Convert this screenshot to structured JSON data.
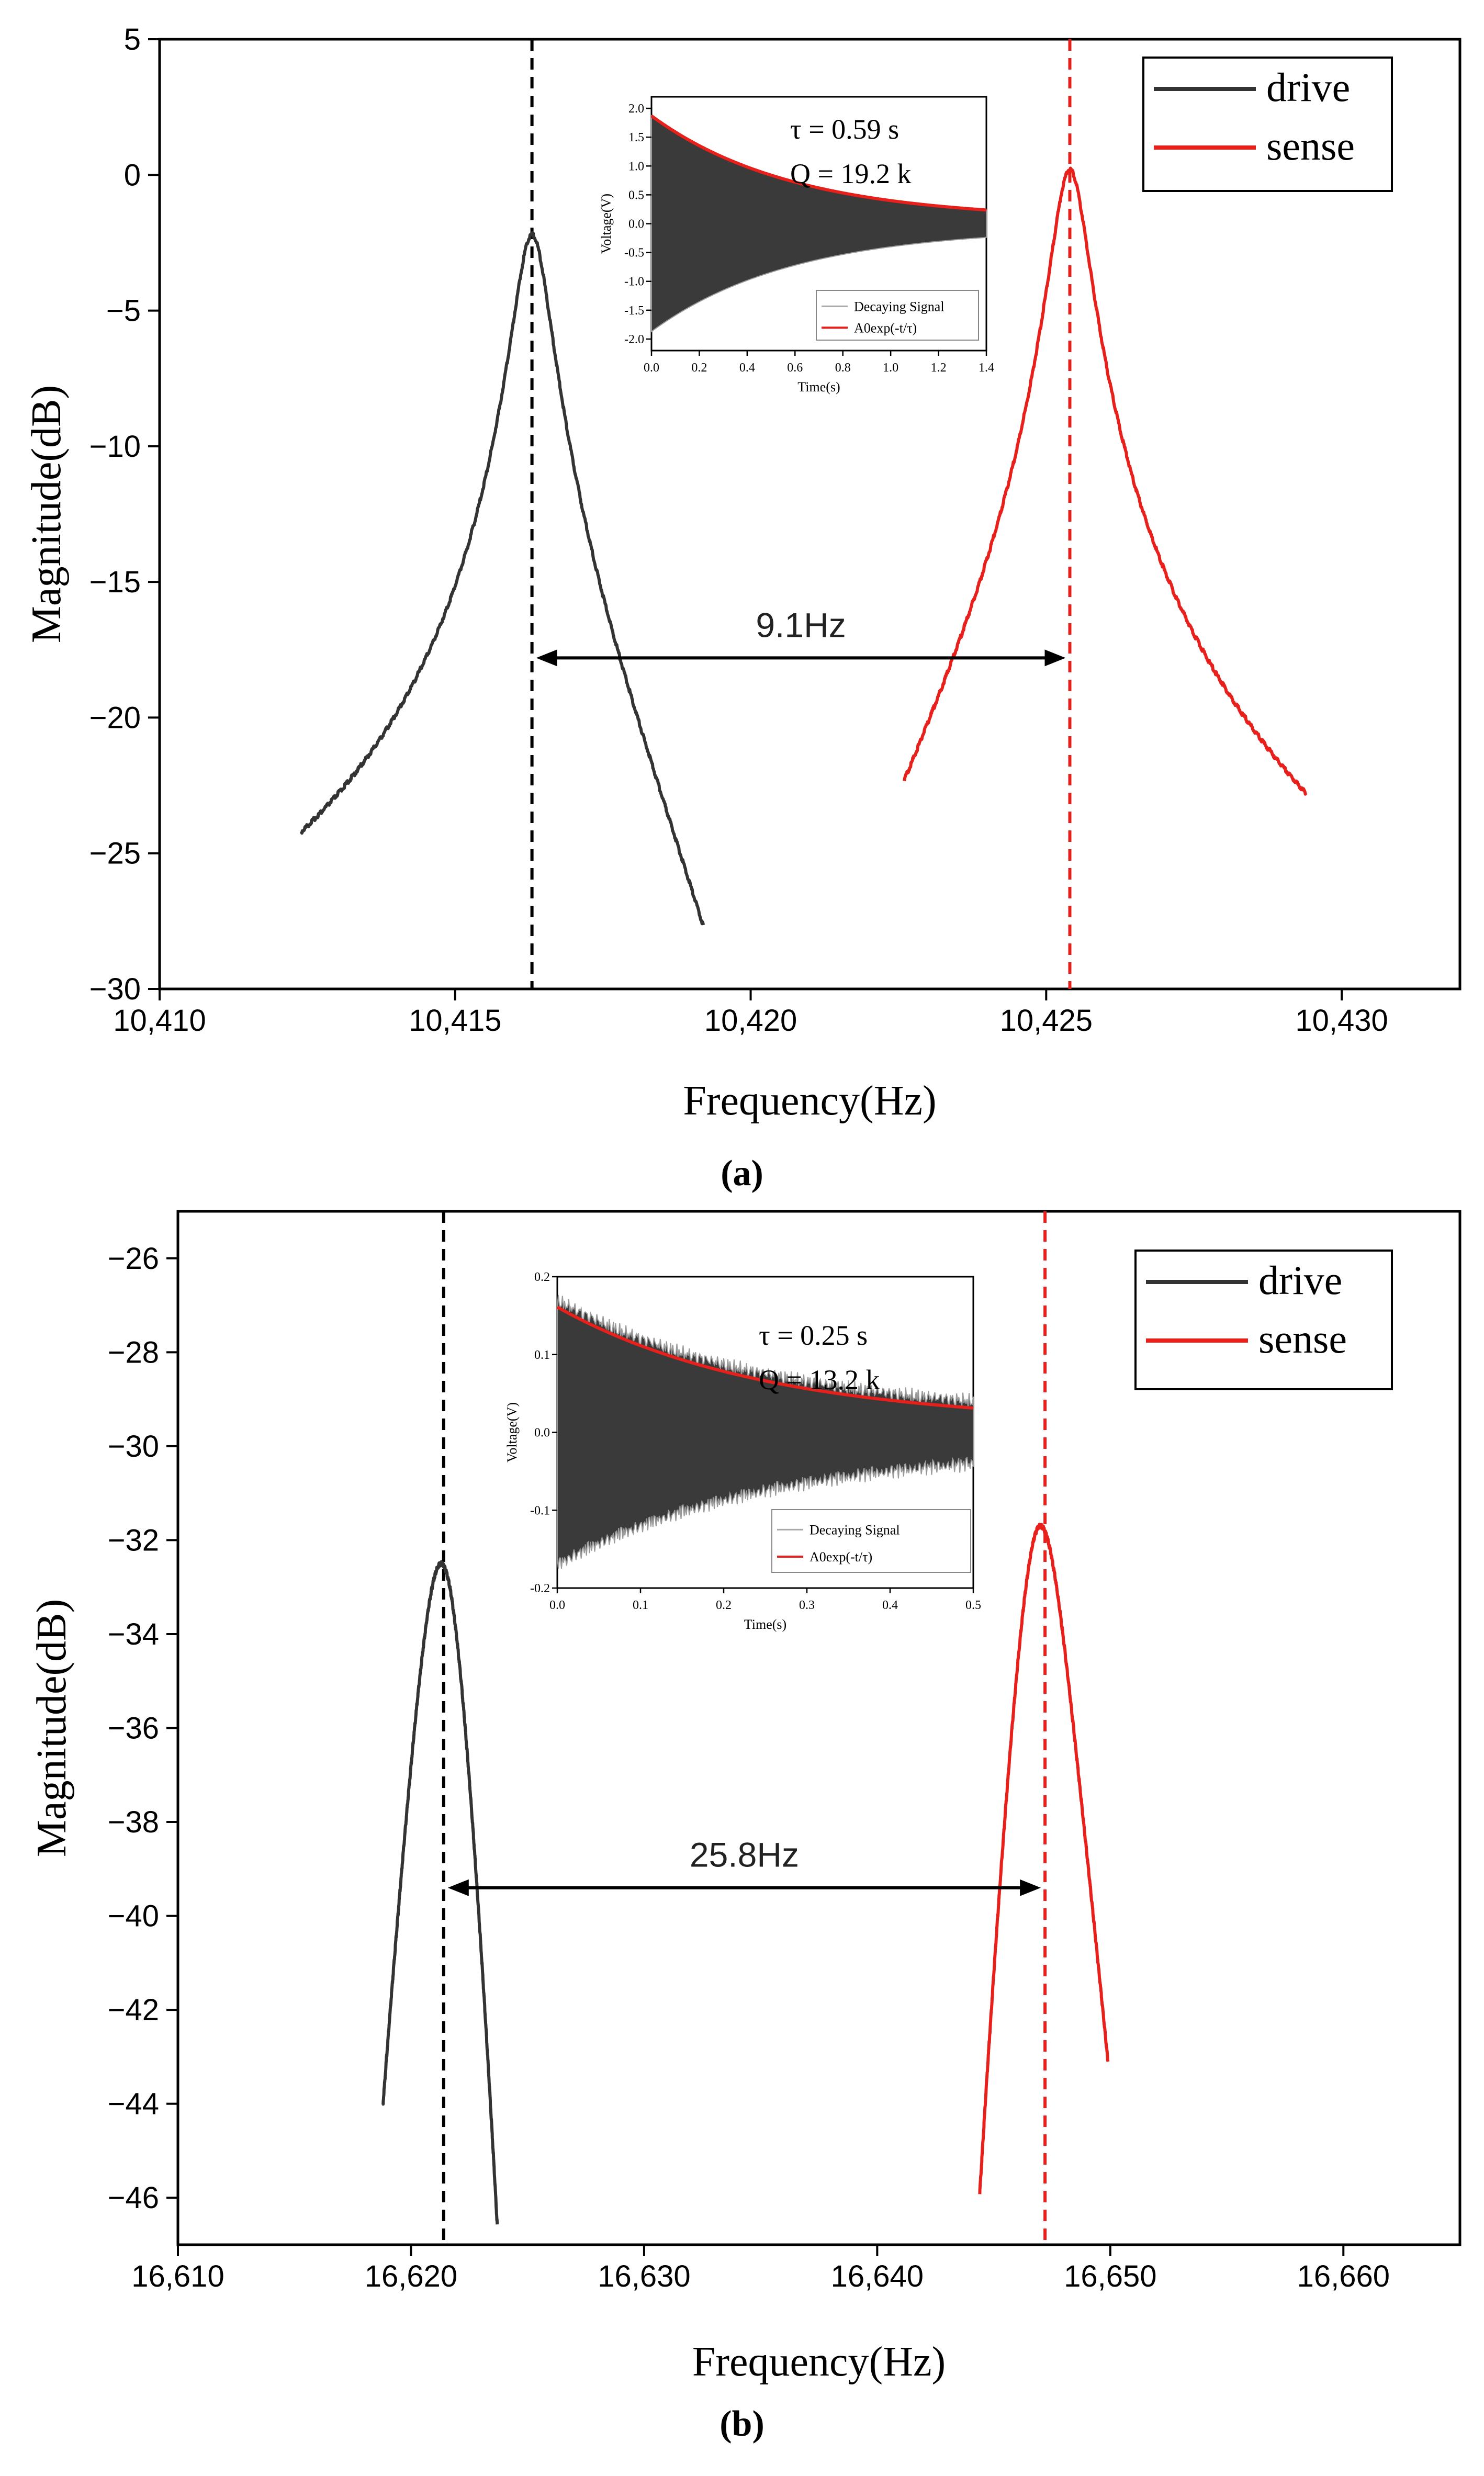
{
  "chart_data": [
    {
      "panel": "a",
      "panel_label": "(a)",
      "type": "line",
      "xlabel": "Frequency(Hz)",
      "ylabel": "Magnitude(dB)",
      "xlim": [
        10410,
        10432
      ],
      "ylim": [
        -30,
        5
      ],
      "xticks": [
        10410,
        10415,
        10420,
        10425,
        10430
      ],
      "xtick_labels": [
        "10,410",
        "10,415",
        "10,420",
        "10,425",
        "10,430"
      ],
      "yticks": [
        5,
        0,
        -5,
        -10,
        -15,
        -20,
        -25,
        -30
      ],
      "ytick_labels": [
        "5",
        "0",
        "−5",
        "−10",
        "−15",
        "−20",
        "−25",
        "−30"
      ],
      "legend": [
        "drive",
        "sense"
      ],
      "legend_position": "top-right",
      "series": [
        {
          "name": "drive",
          "color": "#333333",
          "f0": 10416.3,
          "peak": -2.2,
          "width": 0.3,
          "x_start": 10412.4,
          "x_end": 10419.2,
          "start_val": -24.2,
          "end_val": -27.7
        },
        {
          "name": "sense",
          "color": "#e8201c",
          "f0": 10425.4,
          "peak": 0.2,
          "width": 0.3,
          "x_start": 10422.6,
          "x_end": 10429.4,
          "start_val": -22.3,
          "end_val": -22.8
        }
      ],
      "vlines": [
        {
          "x": 10416.3,
          "color": "#000000"
        },
        {
          "x": 10425.4,
          "color": "#e8201c"
        }
      ],
      "annotation": {
        "text": "9.1Hz",
        "x1": 10416.3,
        "x2": 10425.4,
        "y": -17.8
      },
      "inset": {
        "xlabel": "Time(s)",
        "ylabel": "Voltage(V)",
        "xlim": [
          0,
          1.4
        ],
        "ylim": [
          -2.2,
          2.2
        ],
        "xticks": [
          0,
          0.2,
          0.4,
          0.6,
          0.8,
          1.0,
          1.2,
          1.4
        ],
        "xtick_labels": [
          "0.0",
          "0.2",
          "0.4",
          "0.6",
          "0.8",
          "1.0",
          "1.2",
          "1.4"
        ],
        "yticks": [
          2.0,
          1.5,
          1.0,
          0.5,
          0.0,
          -0.5,
          -1.0,
          -1.5,
          -2.0
        ],
        "ytick_labels": [
          "2.0",
          "1.5",
          "1.0",
          "0.5",
          "0.0",
          "-0.5",
          "-1.0",
          "-1.5",
          "-2.0"
        ],
        "tau_text": "τ = 0.59 s",
        "q_text": "Q = 19.2 k",
        "A0": 1.8,
        "tau": 0.59,
        "offset": 0.07,
        "noise": 0.0,
        "legend": [
          "Decaying Signal",
          "A0exp(-t/τ)"
        ]
      }
    },
    {
      "panel": "b",
      "panel_label": "(b)",
      "type": "line",
      "xlabel": "Frequency(Hz)",
      "ylabel": "Magnitude(dB)",
      "xlim": [
        16610,
        16665
      ],
      "ylim": [
        -47,
        -25
      ],
      "xticks": [
        16610,
        16620,
        16630,
        16640,
        16650,
        16660
      ],
      "xtick_labels": [
        "16,610",
        "16,620",
        "16,630",
        "16,640",
        "16,650",
        "16,660"
      ],
      "yticks": [
        -26,
        -28,
        -30,
        -32,
        -34,
        -36,
        -38,
        -40,
        -42,
        -44,
        -46
      ],
      "ytick_labels": [
        "−26",
        "−28",
        "−30",
        "−32",
        "−34",
        "−36",
        "−38",
        "−40",
        "−42",
        "−44",
        "−46"
      ],
      "legend": [
        "drive",
        "sense"
      ],
      "legend_position": "top-right",
      "series": [
        {
          "name": "drive",
          "color": "#333333",
          "f0": 16621.3,
          "peak": -32.5,
          "width": 1.3,
          "x_start": 16618.8,
          "x_end": 16623.7,
          "start_val": -44.0,
          "end_val": -46.6
        },
        {
          "name": "sense",
          "color": "#e8201c",
          "f0": 16647.0,
          "peak": -31.7,
          "width": 1.3,
          "x_start": 16644.4,
          "x_end": 16649.9,
          "start_val": -45.9,
          "end_val": -43.1
        }
      ],
      "vlines": [
        {
          "x": 16621.4,
          "color": "#000000"
        },
        {
          "x": 16647.2,
          "color": "#e8201c"
        }
      ],
      "annotation": {
        "text": "25.8Hz",
        "x1": 16621.4,
        "x2": 16647.2,
        "y": -39.4
      },
      "inset": {
        "xlabel": "Time(s)",
        "ylabel": "Voltage(V)",
        "xlim": [
          0,
          0.5
        ],
        "ylim": [
          -0.2,
          0.2
        ],
        "xticks": [
          0,
          0.1,
          0.2,
          0.3,
          0.4,
          0.5
        ],
        "xtick_labels": [
          "0.0",
          "0.1",
          "0.2",
          "0.3",
          "0.4",
          "0.5"
        ],
        "yticks": [
          0.2,
          0.1,
          0.0,
          -0.1,
          -0.2
        ],
        "ytick_labels": [
          "0.2",
          "0.1",
          "0.0",
          "-0.1",
          "-0.2"
        ],
        "tau_text": "τ = 0.25 s",
        "q_text": "Q = 13.2 k",
        "A0": 0.15,
        "tau": 0.25,
        "offset": 0.011,
        "noise": 0.012,
        "legend": [
          "Decaying Signal",
          "A0exp(-t/τ)"
        ]
      }
    }
  ]
}
